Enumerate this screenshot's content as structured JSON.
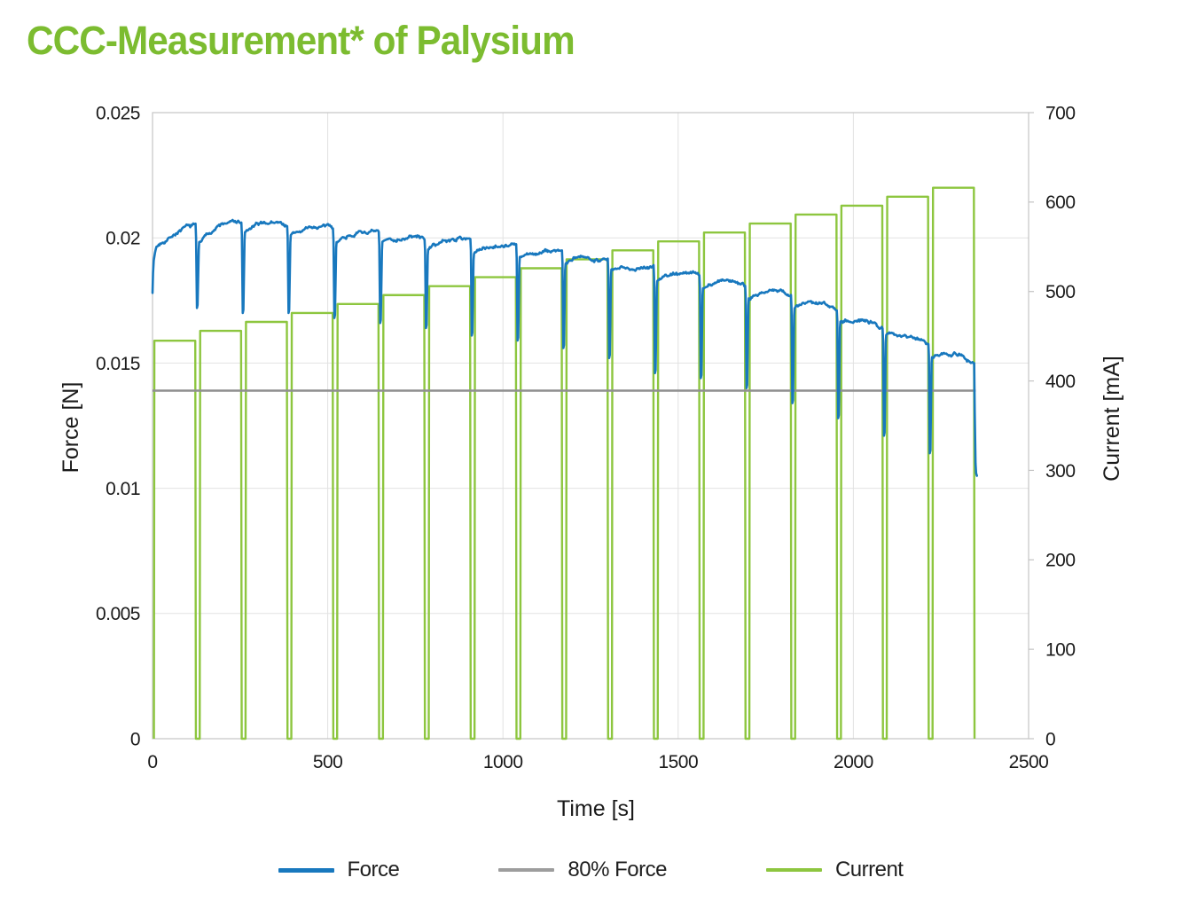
{
  "title": "CCC-Measurement* of Palysium",
  "colors": {
    "title_green": "#7cbc30",
    "force_blue": "#1878be",
    "current_green": "#8dc63f",
    "eighty_gray": "#8f8f8f",
    "grid": "#e2e2e2",
    "plot_border": "#c4c4c4",
    "tick_text": "#1a1a1a"
  },
  "legend": [
    {
      "label": "Force",
      "color": "#1878be"
    },
    {
      "label": "80% Force",
      "color": "#9d9d9d"
    },
    {
      "label": "Current",
      "color": "#8dc63f"
    }
  ],
  "chart_data": {
    "type": "line",
    "title": "CCC-Measurement* of Palysium",
    "xlabel": "Time [s]",
    "ylabel_left": "Force [N]",
    "ylabel_right": "Current [mA]",
    "xlim": [
      0,
      2500
    ],
    "ylim_left": [
      0,
      0.025
    ],
    "ylim_right": [
      0,
      700
    ],
    "x_ticks": [
      0,
      500,
      1000,
      1500,
      2000,
      2500
    ],
    "y_left_ticks": [
      0,
      0.005,
      0.01,
      0.015,
      0.02,
      0.025
    ],
    "y_right_ticks": [
      0,
      100,
      200,
      300,
      400,
      500,
      600,
      700
    ],
    "grid": true,
    "legend_position": "bottom",
    "eighty_pct_force_N": 0.0139,
    "eighty_pct_force_span_s": [
      0,
      2349
    ],
    "cycle_timing": {
      "t_first_rise_s": 4,
      "period_s": 130.7,
      "high_duration_s": 118
    },
    "force_lead_in": [
      [
        0,
        0.0178
      ],
      [
        1.5,
        0.0186
      ],
      [
        3.5,
        0.0191
      ],
      [
        7,
        0.0194
      ]
    ],
    "force_end_drop": [
      [
        2346.2,
        0.0131
      ],
      [
        2348.5,
        0.011
      ],
      [
        2350.2,
        0.0106
      ],
      [
        2352.5,
        0.0105
      ]
    ],
    "cycles": [
      {
        "n": 1,
        "current_mA": 445,
        "force_N": [
          0.0196,
          0.0202,
          0.0205
        ],
        "dip_after_N": 0.0172
      },
      {
        "n": 2,
        "current_mA": 456,
        "force_N": [
          0.0198,
          0.0205,
          0.0206
        ],
        "dip_after_N": 0.017
      },
      {
        "n": 3,
        "current_mA": 466,
        "force_N": [
          0.0202,
          0.0206,
          0.0205
        ],
        "dip_after_N": 0.017
      },
      {
        "n": 4,
        "current_mA": 476,
        "force_N": [
          0.0201,
          0.0204,
          0.0204
        ],
        "dip_after_N": 0.0168
      },
      {
        "n": 5,
        "current_mA": 486,
        "force_N": [
          0.0199,
          0.0202,
          0.0202
        ],
        "dip_after_N": 0.0166
      },
      {
        "n": 6,
        "current_mA": 496,
        "force_N": [
          0.0198,
          0.02,
          0.02
        ],
        "dip_after_N": 0.0164
      },
      {
        "n": 7,
        "current_mA": 506,
        "force_N": [
          0.0196,
          0.0199,
          0.02
        ],
        "dip_after_N": 0.0161
      },
      {
        "n": 8,
        "current_mA": 516,
        "force_N": [
          0.0194,
          0.0197,
          0.0197
        ],
        "dip_after_N": 0.0159
      },
      {
        "n": 9,
        "current_mA": 526,
        "force_N": [
          0.0192,
          0.0194,
          0.0195
        ],
        "dip_after_N": 0.0156
      },
      {
        "n": 10,
        "current_mA": 536,
        "force_N": [
          0.019,
          0.0192,
          0.0191
        ],
        "dip_after_N": 0.0152
      },
      {
        "n": 11,
        "current_mA": 546,
        "force_N": [
          0.0187,
          0.0188,
          0.0189
        ],
        "dip_after_N": 0.0146
      },
      {
        "n": 12,
        "current_mA": 556,
        "force_N": [
          0.0183,
          0.0186,
          0.0185
        ],
        "dip_after_N": 0.0144
      },
      {
        "n": 13,
        "current_mA": 566,
        "force_N": [
          0.018,
          0.0183,
          0.0181
        ],
        "dip_after_N": 0.014
      },
      {
        "n": 14,
        "current_mA": 576,
        "force_N": [
          0.0176,
          0.0179,
          0.0177
        ],
        "dip_after_N": 0.0134
      },
      {
        "n": 15,
        "current_mA": 586,
        "force_N": [
          0.0172,
          0.0174,
          0.0172
        ],
        "dip_after_N": 0.0128
      },
      {
        "n": 16,
        "current_mA": 596,
        "force_N": [
          0.0167,
          0.0167,
          0.0164
        ],
        "dip_after_N": 0.0121
      },
      {
        "n": 17,
        "current_mA": 606,
        "force_N": [
          0.0161,
          0.0161,
          0.0158
        ],
        "dip_after_N": 0.0114
      },
      {
        "n": 18,
        "current_mA": 616,
        "force_N": [
          0.0153,
          0.0154,
          0.015
        ],
        "dip_after_N": null
      }
    ]
  }
}
